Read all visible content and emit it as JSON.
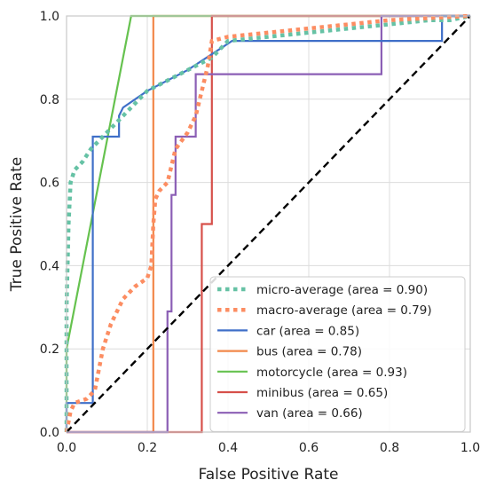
{
  "chart_data": {
    "type": "line",
    "title": "",
    "xlabel": "False Positive Rate",
    "ylabel": "True Positive Rate",
    "xlim": [
      0.0,
      1.0
    ],
    "ylim": [
      0.0,
      1.0
    ],
    "xticks": [
      "0.0",
      "0.2",
      "0.4",
      "0.6",
      "0.8",
      "1.0"
    ],
    "yticks": [
      "0.0",
      "0.2",
      "0.4",
      "0.6",
      "0.8",
      "1.0"
    ],
    "grid": true,
    "legend_position": "lower-right",
    "series": [
      {
        "name": "micro-average (area = 0.90)",
        "color": "#66c2a5",
        "style": "dotted",
        "x": [
          0.0,
          0.0,
          0.005,
          0.01,
          0.02,
          0.04,
          0.06,
          0.08,
          0.1,
          0.12,
          0.14,
          0.16,
          0.18,
          0.2,
          0.24,
          0.28,
          0.32,
          0.36,
          0.4,
          0.5,
          0.6,
          0.7,
          0.8,
          0.9,
          0.95,
          1.0
        ],
        "y": [
          0.0,
          0.3,
          0.5,
          0.6,
          0.63,
          0.65,
          0.68,
          0.7,
          0.72,
          0.74,
          0.76,
          0.78,
          0.8,
          0.82,
          0.84,
          0.86,
          0.88,
          0.9,
          0.94,
          0.95,
          0.96,
          0.97,
          0.98,
          0.99,
          0.99,
          1.0
        ]
      },
      {
        "name": "macro-average (area = 0.79)",
        "color": "#fc8d62",
        "style": "dotted",
        "x": [
          0.0,
          0.01,
          0.02,
          0.05,
          0.07,
          0.09,
          0.11,
          0.14,
          0.17,
          0.2,
          0.21,
          0.215,
          0.22,
          0.23,
          0.25,
          0.27,
          0.3,
          0.32,
          0.33,
          0.34,
          0.35,
          0.36,
          0.4,
          0.5,
          0.6,
          0.7,
          0.8,
          0.9,
          1.0
        ],
        "y": [
          0.0,
          0.05,
          0.07,
          0.08,
          0.1,
          0.2,
          0.26,
          0.32,
          0.35,
          0.37,
          0.4,
          0.5,
          0.56,
          0.58,
          0.6,
          0.68,
          0.72,
          0.76,
          0.8,
          0.84,
          0.88,
          0.94,
          0.95,
          0.96,
          0.97,
          0.98,
          0.99,
          0.995,
          1.0
        ]
      },
      {
        "name": "car (area = 0.85)",
        "color": "#3f6fc8",
        "style": "solid",
        "x": [
          0.0,
          0.0,
          0.065,
          0.065,
          0.065,
          0.13,
          0.13,
          0.14,
          0.2,
          0.3,
          0.41,
          0.41,
          0.93,
          0.93,
          1.0
        ],
        "y": [
          0.0,
          0.07,
          0.07,
          0.71,
          0.71,
          0.71,
          0.76,
          0.78,
          0.82,
          0.87,
          0.94,
          0.94,
          0.94,
          1.0,
          1.0
        ]
      },
      {
        "name": "bus (area = 0.78)",
        "color": "#f2884a",
        "style": "solid",
        "x": [
          0.0,
          0.215,
          0.215,
          1.0
        ],
        "y": [
          0.0,
          0.0,
          1.0,
          1.0
        ]
      },
      {
        "name": "motorcycle (area = 0.93)",
        "color": "#66c24f",
        "style": "solid",
        "x": [
          0.0,
          0.0,
          0.16,
          1.0
        ],
        "y": [
          0.0,
          0.2,
          1.0,
          1.0
        ]
      },
      {
        "name": "minibus (area = 0.65)",
        "color": "#d6504a",
        "style": "solid",
        "x": [
          0.0,
          0.335,
          0.335,
          0.36,
          0.36,
          1.0
        ],
        "y": [
          0.0,
          0.0,
          0.5,
          0.5,
          1.0,
          1.0
        ]
      },
      {
        "name": "van (area = 0.66)",
        "color": "#8b5fb5",
        "style": "solid",
        "x": [
          0.0,
          0.25,
          0.25,
          0.26,
          0.26,
          0.27,
          0.27,
          0.32,
          0.32,
          0.78,
          0.78,
          1.0
        ],
        "y": [
          0.0,
          0.0,
          0.29,
          0.29,
          0.57,
          0.57,
          0.71,
          0.71,
          0.86,
          0.86,
          1.0,
          1.0
        ]
      }
    ],
    "reference_line": {
      "x": [
        0.0,
        1.0
      ],
      "y": [
        0.0,
        1.0
      ],
      "color": "#000000",
      "style": "dashed"
    }
  }
}
